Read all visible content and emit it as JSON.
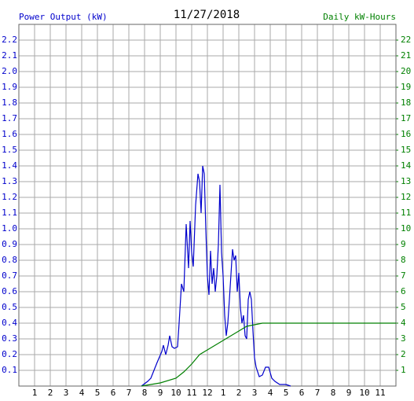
{
  "chart_data": {
    "type": "line",
    "title": "11/27/2018",
    "y_label": "Power Output (kW)",
    "y2_label": "Daily kW-Hours",
    "xlim": [
      0,
      24
    ],
    "xticks": [
      1,
      2,
      3,
      4,
      5,
      6,
      7,
      8,
      9,
      10,
      11,
      12,
      {
        "value": 13,
        "label": "1"
      },
      {
        "value": 14,
        "label": "2"
      },
      {
        "value": 15,
        "label": "3"
      },
      {
        "value": 16,
        "label": "4"
      },
      {
        "value": 17,
        "label": "5"
      },
      {
        "value": 18,
        "label": "6"
      },
      {
        "value": 19,
        "label": "7"
      },
      {
        "value": 20,
        "label": "8"
      },
      {
        "value": 21,
        "label": "9"
      },
      {
        "value": 22,
        "label": "10"
      },
      {
        "value": 23,
        "label": "11"
      }
    ],
    "ylim": [
      0,
      2.3
    ],
    "yticks": [
      0.1,
      0.2,
      0.3,
      0.4,
      0.5,
      0.6,
      0.7,
      0.8,
      0.9,
      {
        "value": 1,
        "label": "1.0"
      },
      1.1,
      1.2,
      1.3,
      1.4,
      1.5,
      1.6,
      1.7,
      1.8,
      1.9,
      {
        "value": 2,
        "label": "2.0"
      },
      2.1,
      2.2
    ],
    "y2lim": [
      0,
      23
    ],
    "y2ticks": [
      1,
      2,
      3,
      4,
      5,
      6,
      7,
      8,
      9,
      10,
      11,
      12,
      13,
      14,
      15,
      16,
      17,
      18,
      19,
      20,
      21,
      22
    ],
    "grid": true,
    "series": [
      {
        "name": "Power Output (kW)",
        "color": "#0000cc",
        "x": [
          7.8,
          8.2,
          8.4,
          8.8,
          9.1,
          9.2,
          9.35,
          9.5,
          9.6,
          9.75,
          9.9,
          10.1,
          10.2,
          10.35,
          10.5,
          10.65,
          10.8,
          10.9,
          11.0,
          11.1,
          11.25,
          11.4,
          11.5,
          11.6,
          11.7,
          11.8,
          11.9,
          12.0,
          12.1,
          12.2,
          12.3,
          12.4,
          12.5,
          12.6,
          12.7,
          12.8,
          12.9,
          13.0,
          13.1,
          13.2,
          13.3,
          13.4,
          13.6,
          13.7,
          13.8,
          13.9,
          14.0,
          14.1,
          14.2,
          14.3,
          14.4,
          14.5,
          14.6,
          14.7,
          14.8,
          14.9,
          15.0,
          15.1,
          15.3,
          15.5,
          15.7,
          15.9,
          16.1,
          16.3,
          16.6,
          17.0,
          17.3
        ],
        "values": [
          0,
          0.03,
          0.05,
          0.15,
          0.22,
          0.26,
          0.2,
          0.26,
          0.32,
          0.25,
          0.24,
          0.25,
          0.4,
          0.65,
          0.6,
          1.03,
          0.75,
          1.05,
          0.85,
          0.76,
          1.15,
          1.35,
          1.3,
          1.1,
          1.4,
          1.35,
          1.0,
          0.7,
          0.58,
          0.86,
          0.65,
          0.75,
          0.6,
          0.7,
          0.9,
          1.28,
          0.85,
          0.7,
          0.45,
          0.32,
          0.4,
          0.55,
          0.87,
          0.8,
          0.83,
          0.6,
          0.72,
          0.5,
          0.4,
          0.45,
          0.32,
          0.3,
          0.55,
          0.6,
          0.55,
          0.35,
          0.18,
          0.12,
          0.06,
          0.07,
          0.12,
          0.12,
          0.05,
          0.03,
          0.01,
          0.01,
          0
        ]
      },
      {
        "name": "Daily kW-Hours",
        "color": "#008000",
        "axis": "y2",
        "x": [
          7.8,
          9,
          10,
          10.5,
          11,
          11.5,
          12,
          12.5,
          13,
          13.5,
          14,
          14.5,
          15,
          15.5,
          16,
          24
        ],
        "values": [
          0,
          0.2,
          0.5,
          0.9,
          1.4,
          2.0,
          2.3,
          2.6,
          2.9,
          3.2,
          3.5,
          3.8,
          3.9,
          4.0,
          4.0,
          4.0
        ]
      }
    ]
  }
}
